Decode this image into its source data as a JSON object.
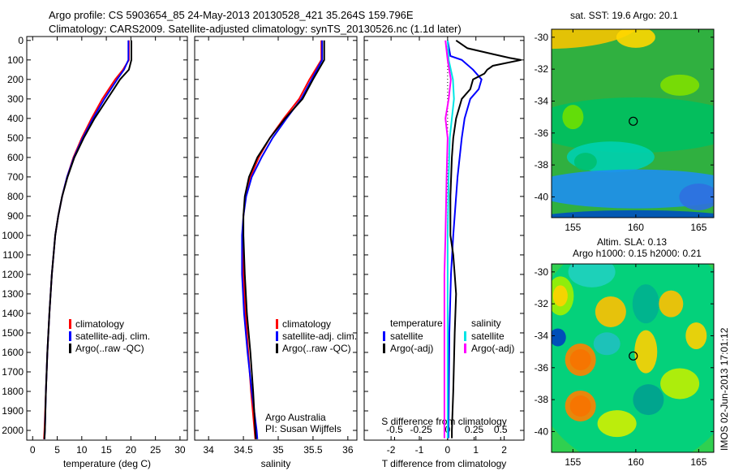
{
  "title_line1": "Argo profile: CS 5903654_85 24-May-2013 20130528_421 35.264S 159.796E",
  "title_line2": "Climatology: CARS2009. Satellite-adjusted climatology: synTS_20130526.nc (1.1d later)",
  "sst_title": "sat. SST: 19.6 Argo: 20.1",
  "sla_title1": "Altim. SLA: 0.13",
  "sla_title2": "Argo h1000: 0.15 h2000: 0.21",
  "stamp": "IMOS 02-Jun-2013 17:01:12",
  "credit1": "Argo Australia",
  "credit2": "PI: Susan Wijffels",
  "colors": {
    "clim": "#ff0000",
    "sat": "#0000ff",
    "argo": "#000000",
    "sat_s": "#00e5e5",
    "argo_s": "#ff00ff"
  },
  "chart_data": [
    {
      "type": "line",
      "name": "temperature",
      "xlabel": "temperature (deg C)",
      "xlim": [
        -1.2,
        31.5
      ],
      "xticks": [
        0,
        5,
        10,
        15,
        20,
        25,
        30
      ],
      "ylim": [
        2050,
        -20
      ],
      "yticks": [
        0,
        100,
        200,
        300,
        400,
        500,
        600,
        700,
        800,
        900,
        1000,
        1100,
        1200,
        1300,
        1400,
        1500,
        1600,
        1700,
        1800,
        1900,
        2000
      ],
      "legend": [
        "climatology",
        "satellite-adj. clim.",
        "Argo(..raw -QC)"
      ],
      "series": [
        {
          "name": "climatology",
          "color": "#ff0000",
          "depth": [
            0,
            100,
            150,
            200,
            300,
            400,
            500,
            600,
            700,
            800,
            900,
            1000,
            1200,
            1400,
            1600,
            1800,
            2000,
            2045
          ],
          "values": [
            19.6,
            19.6,
            18.4,
            16.8,
            14.2,
            12.0,
            10.0,
            8.3,
            7.0,
            6.0,
            5.2,
            4.6,
            3.9,
            3.4,
            3.0,
            2.7,
            2.4,
            2.3
          ]
        },
        {
          "name": "satellite-adj. clim.",
          "color": "#0000ff",
          "depth": [
            0,
            100,
            150,
            200,
            300,
            400,
            500,
            600,
            700,
            800,
            900,
            1000,
            1200,
            1400,
            1600,
            1800,
            2000,
            2045
          ],
          "values": [
            19.5,
            19.5,
            18.6,
            17.2,
            14.6,
            12.3,
            10.2,
            8.4,
            7.0,
            6.0,
            5.2,
            4.6,
            3.9,
            3.4,
            3.0,
            2.7,
            2.5,
            2.4
          ]
        },
        {
          "name": "Argo(..raw -QC)",
          "color": "#000000",
          "depth": [
            0,
            100,
            150,
            200,
            250,
            300,
            400,
            500,
            600,
            700,
            800,
            900,
            1000,
            1200,
            1400,
            1600,
            1800,
            2000,
            2045
          ],
          "values": [
            20.1,
            20.1,
            19.6,
            17.8,
            16.5,
            15.2,
            12.6,
            10.4,
            8.5,
            7.1,
            6.0,
            5.2,
            4.6,
            3.9,
            3.4,
            3.0,
            2.7,
            2.5,
            2.4
          ]
        }
      ]
    },
    {
      "type": "line",
      "name": "salinity",
      "xlabel": "salinity",
      "xlim": [
        33.8,
        36.13
      ],
      "xticks": [
        34,
        34.5,
        35,
        35.5,
        36
      ],
      "ylim": [
        2050,
        -20
      ],
      "legend": [
        "climatology",
        "satellite-adj. clim.",
        "Argo(..raw -QC)"
      ],
      "series": [
        {
          "name": "climatology",
          "color": "#ff0000",
          "depth": [
            0,
            100,
            200,
            300,
            400,
            500,
            600,
            700,
            800,
            900,
            1000,
            1200,
            1400,
            1600,
            1800,
            2000,
            2045
          ],
          "values": [
            35.62,
            35.62,
            35.45,
            35.3,
            35.08,
            34.88,
            34.72,
            34.6,
            34.53,
            34.5,
            34.49,
            34.5,
            34.53,
            34.57,
            34.61,
            34.66,
            34.67
          ]
        },
        {
          "name": "satellite-adj. clim.",
          "color": "#0000ff",
          "depth": [
            0,
            100,
            200,
            300,
            400,
            500,
            600,
            700,
            800,
            900,
            1000,
            1200,
            1400,
            1600,
            1800,
            2000,
            2045
          ],
          "values": [
            35.63,
            35.63,
            35.48,
            35.33,
            35.12,
            34.92,
            34.76,
            34.62,
            34.54,
            34.5,
            34.48,
            34.48,
            34.51,
            34.56,
            34.62,
            34.69,
            34.7
          ]
        },
        {
          "name": "Argo(..raw -QC)",
          "color": "#000000",
          "depth": [
            0,
            100,
            200,
            300,
            400,
            500,
            600,
            700,
            800,
            900,
            1000,
            1200,
            1400,
            1600,
            1800,
            2000,
            2045
          ],
          "values": [
            35.66,
            35.66,
            35.5,
            35.35,
            35.1,
            34.88,
            34.7,
            34.58,
            34.52,
            34.5,
            34.5,
            34.52,
            34.55,
            34.6,
            34.64,
            34.67,
            34.68
          ]
        }
      ]
    },
    {
      "type": "line",
      "name": "difference",
      "xlabel": "T difference from climatology",
      "xlim": [
        -2.95,
        2.7
      ],
      "xticks": [
        -2,
        -1,
        0,
        1,
        2
      ],
      "x2label": "S difference from climatology",
      "x2ticks": [
        -0.5,
        -0.25,
        0,
        0.25,
        0.5
      ],
      "x2ticklabels": [
        "-0.5",
        "-0.25",
        "0",
        "0.25",
        "0.5"
      ],
      "ylim": [
        2050,
        -20
      ],
      "legend_t_title": "temperature",
      "legend_s_title": "salinity",
      "legend": [
        "satellite",
        "Argo(-adj)",
        "satellite",
        "Argo(-adj)"
      ],
      "series": [
        {
          "name": "T satellite",
          "axis": "T",
          "color": "#0000ff",
          "depth": [
            0,
            80,
            100,
            150,
            200,
            250,
            300,
            400,
            500,
            700,
            1000,
            1200,
            1500,
            1800,
            2000,
            2040
          ],
          "values": [
            0.0,
            0.1,
            0.5,
            0.9,
            1.2,
            1.1,
            0.8,
            0.6,
            0.5,
            0.35,
            0.2,
            0.12,
            0.06,
            0.04,
            0.03,
            0.03
          ]
        },
        {
          "name": "T Argo(-adj)",
          "axis": "T",
          "color": "#000000",
          "depth": [
            0,
            40,
            70,
            90,
            100,
            130,
            150,
            170,
            200,
            250,
            300,
            400,
            500,
            600,
            800,
            1000,
            1100,
            1200,
            1300,
            1500,
            1800,
            2000,
            2040
          ],
          "values": [
            0.3,
            0.7,
            1.6,
            2.2,
            2.6,
            1.6,
            1.4,
            1.3,
            0.9,
            0.8,
            0.5,
            0.3,
            0.2,
            0.15,
            0.1,
            0.1,
            0.2,
            0.25,
            0.3,
            0.25,
            0.2,
            0.15,
            0.15
          ]
        },
        {
          "name": "S satellite",
          "axis": "S",
          "color": "#00e5e5",
          "depth": [
            0,
            100,
            200,
            300,
            400,
            500,
            700,
            1000,
            1500,
            2000,
            2040
          ],
          "values": [
            0.0,
            0.01,
            0.05,
            0.06,
            0.04,
            0.02,
            0.01,
            0.0,
            0.0,
            0.0,
            0.0
          ]
        },
        {
          "name": "S Argo(-adj)",
          "axis": "S",
          "color": "#ff00ff",
          "depth": [
            0,
            100,
            200,
            300,
            400,
            500,
            700,
            1000,
            1200,
            1500,
            2000,
            2040
          ],
          "values": [
            -0.02,
            0.0,
            0.03,
            0.01,
            -0.02,
            0.0,
            -0.01,
            -0.02,
            -0.03,
            -0.03,
            -0.03,
            -0.03
          ]
        }
      ]
    },
    {
      "type": "heatmap",
      "name": "sst_map",
      "xlim": [
        153.3,
        166.2
      ],
      "ylim": [
        -41.3,
        -29.5
      ],
      "xticks": [
        155,
        160,
        165
      ],
      "yticks": [
        -30,
        -32,
        -34,
        -36,
        -38,
        -40
      ],
      "marker": {
        "lon": 159.796,
        "lat": -35.264
      }
    },
    {
      "type": "heatmap",
      "name": "sla_map",
      "xlim": [
        153.3,
        166.2
      ],
      "ylim": [
        -41.3,
        -29.5
      ],
      "xticks": [
        155,
        160,
        165
      ],
      "yticks": [
        -30,
        -32,
        -34,
        -36,
        -38,
        -40
      ],
      "marker": {
        "lon": 159.796,
        "lat": -35.264
      }
    }
  ]
}
